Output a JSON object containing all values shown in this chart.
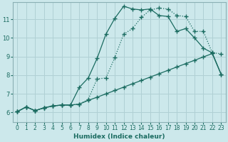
{
  "xlabel": "Humidex (Indice chaleur)",
  "bg_color": "#cce8eb",
  "grid_color": "#b0d0d4",
  "line_color": "#1a6b60",
  "xlim": [
    -0.5,
    23.5
  ],
  "ylim": [
    5.5,
    11.9
  ],
  "xticks": [
    0,
    1,
    2,
    3,
    4,
    5,
    6,
    7,
    8,
    9,
    10,
    11,
    12,
    13,
    14,
    15,
    16,
    17,
    18,
    19,
    20,
    21,
    22,
    23
  ],
  "yticks": [
    6,
    7,
    8,
    9,
    10,
    11
  ],
  "curve1_x": [
    0,
    1,
    2,
    3,
    4,
    5,
    6,
    7,
    8,
    9,
    10,
    11,
    12,
    13,
    14,
    15,
    16,
    17,
    18,
    19,
    20,
    21,
    22,
    23
  ],
  "curve1_y": [
    6.05,
    6.3,
    6.1,
    6.25,
    6.35,
    6.4,
    6.4,
    6.45,
    6.7,
    7.8,
    7.85,
    8.95,
    10.2,
    10.5,
    11.1,
    11.5,
    11.6,
    11.55,
    11.2,
    11.15,
    10.35,
    10.35,
    9.2,
    9.15
  ],
  "curve2_x": [
    0,
    1,
    2,
    3,
    4,
    5,
    6,
    7,
    8,
    9,
    10,
    11,
    12,
    13,
    14,
    15,
    16,
    17,
    18,
    19,
    20,
    21,
    22,
    23
  ],
  "curve2_y": [
    6.05,
    6.3,
    6.1,
    6.25,
    6.35,
    6.4,
    6.4,
    7.35,
    7.85,
    8.9,
    10.2,
    11.05,
    11.7,
    11.55,
    11.5,
    11.55,
    11.2,
    11.15,
    10.35,
    10.5,
    10.0,
    9.45,
    9.2,
    8.05
  ],
  "curve3_x": [
    0,
    1,
    2,
    3,
    4,
    5,
    6,
    7,
    8,
    9,
    10,
    11,
    12,
    13,
    14,
    15,
    16,
    17,
    18,
    19,
    20,
    21,
    22,
    23
  ],
  "curve3_y": [
    6.05,
    6.3,
    6.1,
    6.25,
    6.35,
    6.4,
    6.4,
    6.45,
    6.65,
    6.82,
    7.0,
    7.18,
    7.36,
    7.54,
    7.72,
    7.9,
    8.08,
    8.26,
    8.44,
    8.62,
    8.8,
    8.98,
    9.16,
    8.05
  ]
}
